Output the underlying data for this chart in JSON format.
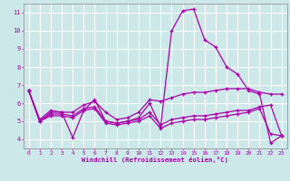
{
  "xlabel": "Windchill (Refroidissement éolien,°C)",
  "bg_color": "#cce8e8",
  "grid_color": "#ffffff",
  "line_color": "#aa00aa",
  "xlim": [
    -0.5,
    23.5
  ],
  "ylim": [
    3.5,
    11.5
  ],
  "yticks": [
    4,
    5,
    6,
    7,
    8,
    9,
    10,
    11
  ],
  "xticks": [
    0,
    1,
    2,
    3,
    4,
    5,
    6,
    7,
    8,
    9,
    10,
    11,
    12,
    13,
    14,
    15,
    16,
    17,
    18,
    19,
    20,
    21,
    22,
    23
  ],
  "series": [
    [
      6.7,
      5.0,
      5.5,
      5.5,
      4.1,
      5.6,
      6.2,
      5.0,
      4.9,
      5.0,
      5.2,
      6.0,
      4.7,
      10.0,
      11.1,
      11.2,
      9.5,
      9.1,
      8.0,
      7.6,
      6.7,
      6.5,
      3.8,
      4.2
    ],
    [
      6.7,
      5.1,
      5.6,
      5.5,
      5.5,
      5.9,
      6.1,
      5.5,
      5.1,
      5.2,
      5.5,
      6.2,
      6.1,
      6.3,
      6.5,
      6.6,
      6.6,
      6.7,
      6.8,
      6.8,
      6.8,
      6.6,
      6.5,
      6.5
    ],
    [
      6.7,
      5.0,
      5.4,
      5.4,
      5.3,
      5.7,
      5.8,
      5.0,
      4.9,
      5.0,
      5.1,
      5.5,
      4.8,
      5.1,
      5.2,
      5.3,
      5.3,
      5.4,
      5.5,
      5.6,
      5.6,
      5.8,
      5.9,
      4.2
    ],
    [
      6.7,
      5.0,
      5.3,
      5.3,
      5.2,
      5.6,
      5.7,
      4.9,
      4.8,
      4.9,
      5.0,
      5.3,
      4.6,
      4.9,
      5.0,
      5.1,
      5.1,
      5.2,
      5.3,
      5.4,
      5.5,
      5.7,
      4.3,
      4.2
    ]
  ]
}
